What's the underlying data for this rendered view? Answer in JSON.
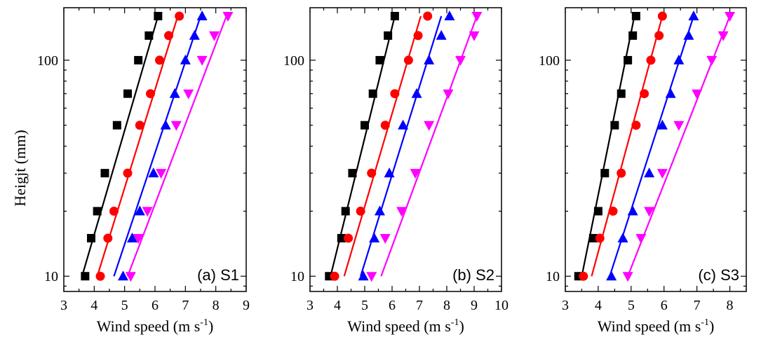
{
  "colors": {
    "black": "#000000",
    "red": "#ff0000",
    "blue": "#0000ff",
    "magenta": "#ff00ff"
  },
  "chart_data": [
    {
      "type": "scatter",
      "panel_label": "(a) S1",
      "xlabel": "Wind speed (m s",
      "xlabel_sup": "-1",
      "xlabel_close": ")",
      "ylabel": "Heigjt (mm)",
      "yscale": "log",
      "xlim": [
        3,
        9
      ],
      "ylim": [
        8.5,
        175
      ],
      "xticks": [
        3,
        4,
        5,
        6,
        7,
        8,
        9
      ],
      "yticks": [
        10,
        100
      ],
      "series": [
        {
          "color": "black",
          "marker": "square",
          "x": [
            3.7,
            3.9,
            4.1,
            4.35,
            4.75,
            5.1,
            5.45,
            5.8,
            6.1
          ],
          "y": [
            10,
            15,
            20,
            30,
            50,
            70,
            100,
            130,
            160
          ],
          "fit": [
            [
              3.6,
              10
            ],
            [
              6.1,
              160
            ]
          ]
        },
        {
          "color": "red",
          "marker": "circle",
          "x": [
            4.2,
            4.45,
            4.65,
            5.1,
            5.5,
            5.85,
            6.15,
            6.45,
            6.8
          ],
          "y": [
            10,
            15,
            20,
            30,
            50,
            70,
            100,
            130,
            160
          ],
          "fit": [
            [
              4.1,
              10
            ],
            [
              6.75,
              160
            ]
          ]
        },
        {
          "color": "blue",
          "marker": "triangle-up",
          "x": [
            4.95,
            5.25,
            5.5,
            5.95,
            6.35,
            6.65,
            7.0,
            7.3,
            7.55
          ],
          "y": [
            10,
            15,
            20,
            30,
            50,
            70,
            100,
            130,
            160
          ],
          "fit": [
            [
              4.65,
              10
            ],
            [
              7.5,
              160
            ]
          ]
        },
        {
          "color": "magenta",
          "marker": "triangle-down",
          "x": [
            5.2,
            5.45,
            5.75,
            6.2,
            6.7,
            7.1,
            7.55,
            7.95,
            8.4
          ],
          "y": [
            10,
            15,
            20,
            30,
            50,
            70,
            100,
            130,
            160
          ],
          "fit": [
            [
              5.1,
              10
            ],
            [
              8.35,
              160
            ]
          ]
        }
      ]
    },
    {
      "type": "scatter",
      "panel_label": "(b) S2",
      "xlabel": "Wind speed (m s",
      "xlabel_sup": "-1",
      "xlabel_close": ")",
      "ylabel": "",
      "yscale": "log",
      "xlim": [
        3,
        10
      ],
      "ylim": [
        8.5,
        175
      ],
      "xticks": [
        3,
        4,
        5,
        6,
        7,
        8,
        9,
        10
      ],
      "yticks": [
        10,
        100
      ],
      "series": [
        {
          "color": "black",
          "marker": "square",
          "x": [
            3.7,
            4.15,
            4.3,
            4.55,
            5.0,
            5.3,
            5.55,
            5.85,
            6.1
          ],
          "y": [
            10,
            15,
            20,
            30,
            50,
            70,
            100,
            130,
            160
          ],
          "fit": [
            [
              3.75,
              10
            ],
            [
              6.1,
              160
            ]
          ]
        },
        {
          "color": "red",
          "marker": "circle",
          "x": [
            3.9,
            4.4,
            4.85,
            5.25,
            5.75,
            6.1,
            6.6,
            6.95,
            7.3
          ],
          "y": [
            10,
            15,
            20,
            30,
            50,
            70,
            100,
            130,
            160
          ],
          "fit": [
            [
              4.25,
              10
            ],
            [
              7.05,
              160
            ]
          ]
        },
        {
          "color": "blue",
          "marker": "triangle-up",
          "x": [
            4.95,
            5.35,
            5.55,
            5.9,
            6.4,
            6.9,
            7.35,
            7.8,
            8.1
          ],
          "y": [
            10,
            15,
            20,
            30,
            50,
            70,
            100,
            130,
            160
          ],
          "fit": [
            [
              4.85,
              10
            ],
            [
              7.8,
              160
            ]
          ]
        },
        {
          "color": "magenta",
          "marker": "triangle-down",
          "x": [
            5.25,
            5.75,
            6.35,
            6.85,
            7.35,
            8.05,
            8.5,
            9.0,
            9.1
          ],
          "y": [
            10,
            15,
            20,
            30,
            50,
            70,
            100,
            130,
            160
          ],
          "fit": [
            [
              5.6,
              10
            ],
            [
              9.1,
              160
            ]
          ]
        }
      ]
    },
    {
      "type": "scatter",
      "panel_label": "(c) S3",
      "xlabel": "Wind speed (m s",
      "xlabel_sup": "-1",
      "xlabel_close": ")",
      "ylabel": "",
      "yscale": "log",
      "xlim": [
        3,
        8.5
      ],
      "ylim": [
        8.5,
        175
      ],
      "xticks": [
        3,
        4,
        5,
        6,
        7,
        8
      ],
      "yticks": [
        10,
        100
      ],
      "series": [
        {
          "color": "black",
          "marker": "square",
          "x": [
            3.4,
            3.85,
            4.0,
            4.2,
            4.5,
            4.7,
            4.9,
            5.05,
            5.15
          ],
          "y": [
            10,
            15,
            20,
            30,
            50,
            70,
            100,
            130,
            160
          ],
          "fit": [
            [
              3.5,
              10
            ],
            [
              5.1,
              160
            ]
          ]
        },
        {
          "color": "red",
          "marker": "circle",
          "x": [
            3.55,
            4.05,
            4.45,
            4.7,
            5.15,
            5.4,
            5.6,
            5.85,
            5.95
          ],
          "y": [
            10,
            15,
            20,
            30,
            50,
            70,
            100,
            130,
            160
          ],
          "fit": [
            [
              3.8,
              10
            ],
            [
              5.95,
              160
            ]
          ]
        },
        {
          "color": "blue",
          "marker": "triangle-up",
          "x": [
            4.4,
            4.75,
            5.05,
            5.55,
            5.95,
            6.2,
            6.45,
            6.75,
            6.9
          ],
          "y": [
            10,
            15,
            20,
            30,
            50,
            70,
            100,
            130,
            160
          ],
          "fit": [
            [
              4.35,
              10
            ],
            [
              6.9,
              160
            ]
          ]
        },
        {
          "color": "magenta",
          "marker": "triangle-down",
          "x": [
            4.9,
            5.3,
            5.55,
            5.95,
            6.45,
            7.0,
            7.45,
            7.8,
            8.0
          ],
          "y": [
            10,
            15,
            20,
            30,
            50,
            70,
            100,
            130,
            160
          ],
          "fit": [
            [
              4.9,
              10
            ],
            [
              8.0,
              160
            ]
          ]
        }
      ]
    }
  ]
}
